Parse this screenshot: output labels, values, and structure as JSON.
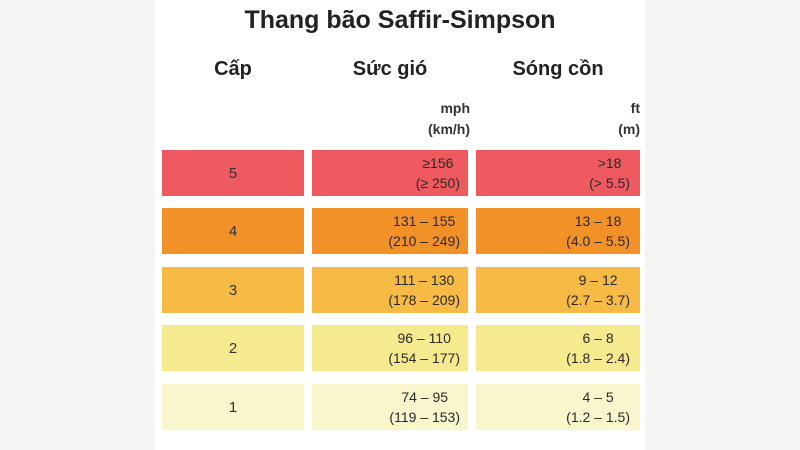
{
  "title": "Thang bão Saffir-Simpson",
  "headers": {
    "level": "Cấp",
    "wind": "Sức gió",
    "surge": "Sóng cồn"
  },
  "units": {
    "wind_primary": "mph",
    "wind_secondary": "(km/h)",
    "surge_primary": "ft",
    "surge_secondary": "(m)"
  },
  "rows": [
    {
      "level": "5",
      "wind_primary": "≥156",
      "wind_secondary": "(≥ 250)",
      "surge_primary": ">18",
      "surge_secondary": "(> 5.5)",
      "color": "#ef5a61"
    },
    {
      "level": "4",
      "wind_primary": "131 – 155",
      "wind_secondary": "(210 – 249)",
      "surge_primary": "13 – 18",
      "surge_secondary": "(4.0 – 5.5)",
      "color": "#f39129"
    },
    {
      "level": "3",
      "wind_primary": "111 – 130",
      "wind_secondary": "(178 – 209)",
      "surge_primary": "9 – 12",
      "surge_secondary": "(2.7 – 3.7)",
      "color": "#f7bb45"
    },
    {
      "level": "2",
      "wind_primary": "96 – 110",
      "wind_secondary": "(154 – 177)",
      "surge_primary": "6 – 8",
      "surge_secondary": "(1.8 – 2.4)",
      "color": "#f6ea8e"
    },
    {
      "level": "1",
      "wind_primary": "74 – 95",
      "wind_secondary": "(119 – 153)",
      "surge_primary": "4 – 5",
      "surge_secondary": "(1.2 – 1.5)",
      "color": "#f9f5cd"
    }
  ]
}
